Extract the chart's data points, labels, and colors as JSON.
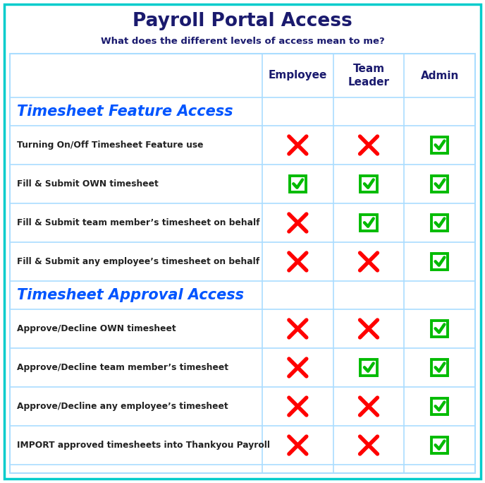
{
  "title": "Payroll Portal Access",
  "subtitle": "What does the different levels of access mean to me?",
  "title_color": "#1a1a6e",
  "subtitle_color": "#1a1a6e",
  "col_headers": [
    "Employee",
    "Team\nLeader",
    "Admin"
  ],
  "col_header_color": "#1a1a6e",
  "section1_title": "Timesheet Feature Access",
  "section2_title": "Timesheet Approval Access",
  "section_title_color": "#0055ff",
  "rows": [
    {
      "label": "Turning On/Off Timesheet Feature use",
      "values": [
        false,
        false,
        true
      ]
    },
    {
      "label": "Fill & Submit OWN timesheet",
      "values": [
        true,
        true,
        true
      ]
    },
    {
      "label": "Fill & Submit team member’s timesheet on behalf",
      "values": [
        false,
        true,
        true
      ]
    },
    {
      "label": "Fill & Submit any employee’s timesheet on behalf",
      "values": [
        false,
        false,
        true
      ]
    },
    {
      "label": "Approve/Decline OWN timesheet",
      "values": [
        false,
        false,
        true
      ]
    },
    {
      "label": "Approve/Decline team member’s timesheet",
      "values": [
        false,
        true,
        true
      ]
    },
    {
      "label": "Approve/Decline any employee’s timesheet",
      "values": [
        false,
        false,
        true
      ]
    },
    {
      "label": "IMPORT approved timesheets into Thankyou Payroll",
      "values": [
        false,
        false,
        true
      ]
    }
  ],
  "check_color": "#00bb00",
  "cross_color": "#ff0000",
  "border_color": "#aaddff",
  "outer_border_color": "#00cccc",
  "background_color": "#ffffff",
  "row_label_color": "#222222",
  "grid_color": "#aaddff",
  "fig_width": 6.88,
  "fig_height": 6.84,
  "dpi": 100
}
